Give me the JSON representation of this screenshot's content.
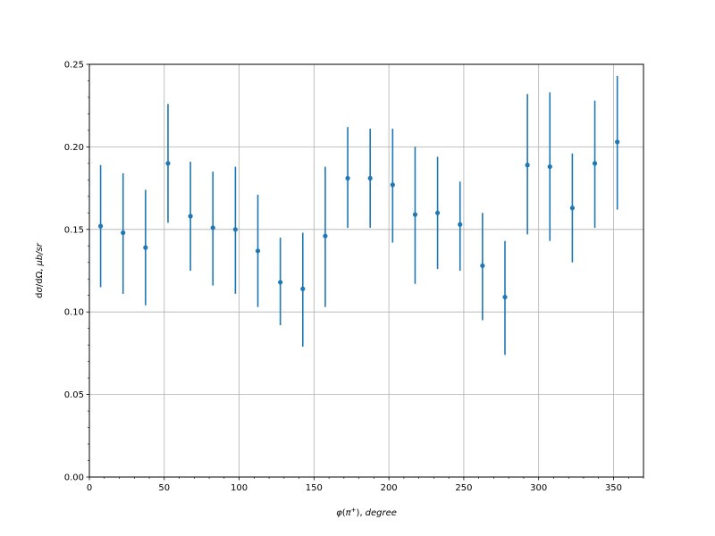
{
  "chart_data": {
    "type": "scatter",
    "xlabel": "",
    "ylabel": "",
    "xlabel_parts": {
      "phi": "φ",
      "open": "(",
      "pi": "π",
      "sup": "+",
      "close": ")",
      "sep": ",",
      "unit": "degree"
    },
    "ylabel_parts": {
      "d1": "d",
      "sigma": "σ",
      "slash": "/",
      "d2": "d",
      "omega": "Ω",
      "sep": ",",
      "mu": "μ",
      "b": "b",
      "slash2": "/",
      "sr": "sr"
    },
    "xlim": [
      0,
      370
    ],
    "ylim": [
      0,
      0.25
    ],
    "xticks": [
      0,
      50,
      100,
      150,
      200,
      250,
      300,
      350
    ],
    "yticks": [
      0.0,
      0.05,
      0.1,
      0.15,
      0.2,
      0.25
    ],
    "x_tick_labels": [
      "0",
      "50",
      "100",
      "150",
      "200",
      "250",
      "300",
      "350"
    ],
    "y_tick_labels": [
      "0.00",
      "0.05",
      "0.10",
      "0.15",
      "0.20",
      "0.25"
    ],
    "grid": true,
    "series_color": "#1f77b4",
    "points": [
      {
        "x": 7.5,
        "y": 0.152,
        "lo": 0.115,
        "hi": 0.189
      },
      {
        "x": 22.5,
        "y": 0.148,
        "lo": 0.111,
        "hi": 0.184
      },
      {
        "x": 37.5,
        "y": 0.139,
        "lo": 0.104,
        "hi": 0.174
      },
      {
        "x": 52.5,
        "y": 0.19,
        "lo": 0.154,
        "hi": 0.226
      },
      {
        "x": 67.5,
        "y": 0.158,
        "lo": 0.125,
        "hi": 0.191
      },
      {
        "x": 82.5,
        "y": 0.151,
        "lo": 0.116,
        "hi": 0.185
      },
      {
        "x": 97.5,
        "y": 0.15,
        "lo": 0.111,
        "hi": 0.188
      },
      {
        "x": 112.5,
        "y": 0.137,
        "lo": 0.103,
        "hi": 0.171
      },
      {
        "x": 127.5,
        "y": 0.118,
        "lo": 0.092,
        "hi": 0.145
      },
      {
        "x": 142.5,
        "y": 0.114,
        "lo": 0.079,
        "hi": 0.148
      },
      {
        "x": 157.5,
        "y": 0.146,
        "lo": 0.103,
        "hi": 0.188
      },
      {
        "x": 172.5,
        "y": 0.181,
        "lo": 0.151,
        "hi": 0.212
      },
      {
        "x": 187.5,
        "y": 0.181,
        "lo": 0.151,
        "hi": 0.211
      },
      {
        "x": 202.5,
        "y": 0.177,
        "lo": 0.142,
        "hi": 0.211
      },
      {
        "x": 217.5,
        "y": 0.159,
        "lo": 0.117,
        "hi": 0.2
      },
      {
        "x": 232.5,
        "y": 0.16,
        "lo": 0.126,
        "hi": 0.194
      },
      {
        "x": 247.5,
        "y": 0.153,
        "lo": 0.125,
        "hi": 0.179
      },
      {
        "x": 262.5,
        "y": 0.128,
        "lo": 0.095,
        "hi": 0.16
      },
      {
        "x": 277.5,
        "y": 0.109,
        "lo": 0.074,
        "hi": 0.143
      },
      {
        "x": 292.5,
        "y": 0.189,
        "lo": 0.147,
        "hi": 0.232
      },
      {
        "x": 307.5,
        "y": 0.188,
        "lo": 0.143,
        "hi": 0.233
      },
      {
        "x": 322.5,
        "y": 0.163,
        "lo": 0.13,
        "hi": 0.196
      },
      {
        "x": 337.5,
        "y": 0.19,
        "lo": 0.151,
        "hi": 0.228
      },
      {
        "x": 352.5,
        "y": 0.203,
        "lo": 0.162,
        "hi": 0.243
      }
    ]
  }
}
